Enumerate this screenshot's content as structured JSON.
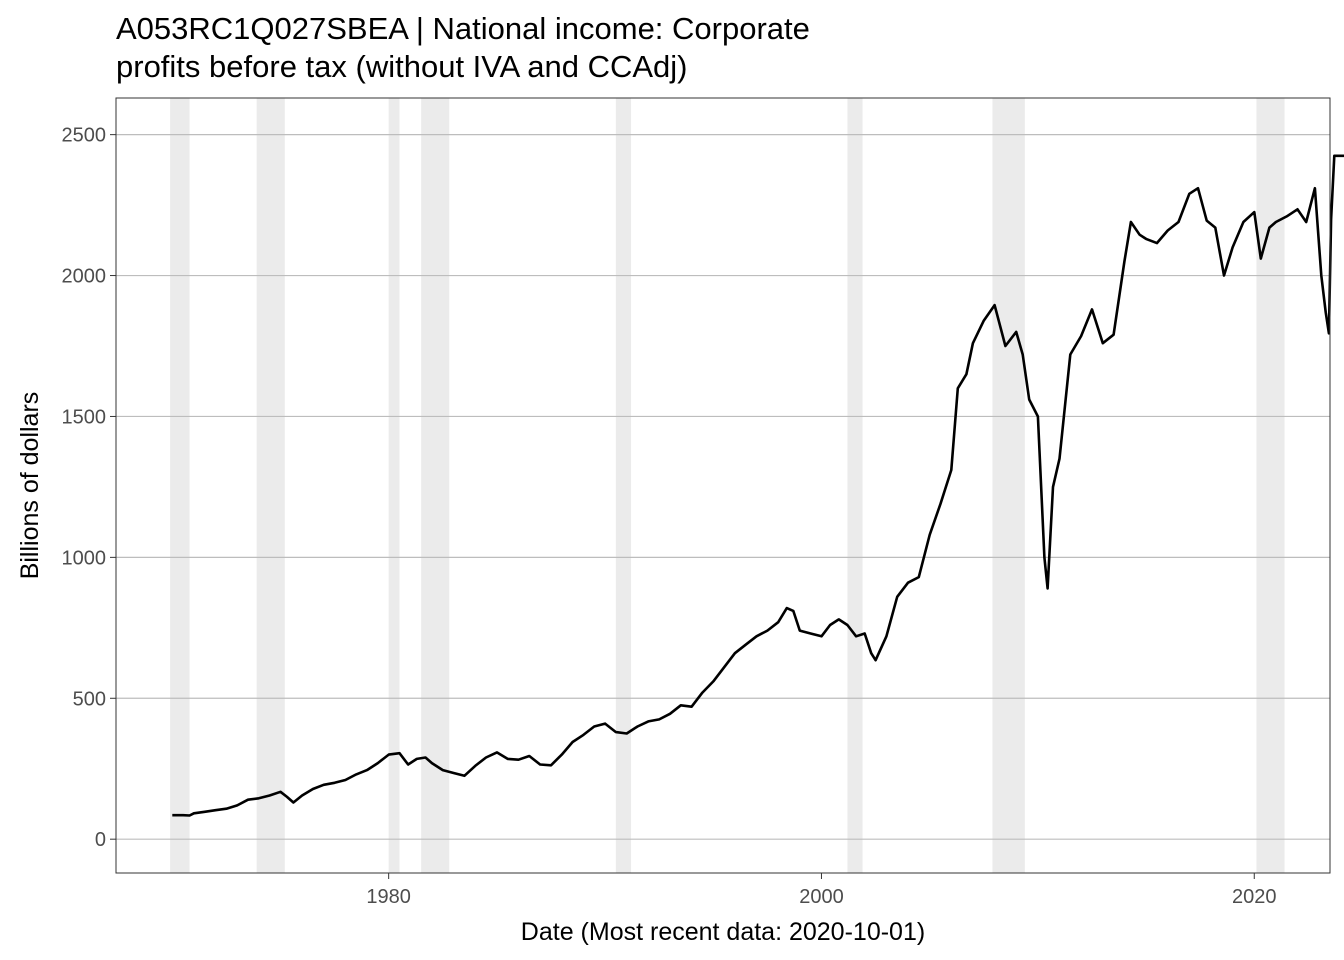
{
  "chart_data": {
    "type": "line",
    "title_line1": "A053RC1Q027SBEA | National income: Corporate",
    "title_line2": "profits before tax (without IVA and CCAdj)",
    "xlabel": "Date (Most recent data: 2020-10-01)",
    "ylabel": "Billions of dollars",
    "xlim": [
      1967.4,
      2023.5
    ],
    "ylim": [
      -120,
      2630
    ],
    "x_ticks": [
      {
        "value": 1980,
        "label": "1980"
      },
      {
        "value": 2000,
        "label": "2000"
      },
      {
        "value": 2020,
        "label": "2020"
      }
    ],
    "y_ticks": [
      {
        "value": 0,
        "label": "0"
      },
      {
        "value": 500,
        "label": "500"
      },
      {
        "value": 1000,
        "label": "1000"
      },
      {
        "value": 1500,
        "label": "1500"
      },
      {
        "value": 2000,
        "label": "2000"
      },
      {
        "value": 2500,
        "label": "2500"
      }
    ],
    "grid": true,
    "recessions": [
      [
        1969.9,
        1970.8
      ],
      [
        1973.9,
        1975.2
      ],
      [
        1980.0,
        1980.5
      ],
      [
        1981.5,
        1982.8
      ],
      [
        1990.5,
        1991.2
      ],
      [
        2001.2,
        2001.9
      ],
      [
        2007.9,
        2009.4
      ],
      [
        2020.1,
        2021.4
      ]
    ],
    "series": [
      {
        "color": "#000000",
        "points": [
          [
            1970.0,
            85
          ],
          [
            1970.5,
            85
          ],
          [
            1970.8,
            84
          ],
          [
            1971.0,
            92
          ],
          [
            1971.5,
            97
          ],
          [
            1972.0,
            103
          ],
          [
            1972.5,
            108
          ],
          [
            1973.0,
            120
          ],
          [
            1973.5,
            140
          ],
          [
            1974.0,
            145
          ],
          [
            1974.5,
            155
          ],
          [
            1975.0,
            168
          ],
          [
            1975.3,
            150
          ],
          [
            1975.6,
            130
          ],
          [
            1976.0,
            155
          ],
          [
            1976.5,
            178
          ],
          [
            1977.0,
            193
          ],
          [
            1977.5,
            200
          ],
          [
            1978.0,
            210
          ],
          [
            1978.5,
            230
          ],
          [
            1979.0,
            245
          ],
          [
            1979.5,
            270
          ],
          [
            1980.0,
            300
          ],
          [
            1980.5,
            305
          ],
          [
            1980.9,
            265
          ],
          [
            1981.3,
            285
          ],
          [
            1981.7,
            290
          ],
          [
            1982.0,
            270
          ],
          [
            1982.5,
            245
          ],
          [
            1983.0,
            235
          ],
          [
            1983.5,
            225
          ],
          [
            1984.0,
            260
          ],
          [
            1984.5,
            290
          ],
          [
            1985.0,
            308
          ],
          [
            1985.5,
            285
          ],
          [
            1986.0,
            282
          ],
          [
            1986.5,
            295
          ],
          [
            1987.0,
            265
          ],
          [
            1987.5,
            262
          ],
          [
            1988.0,
            300
          ],
          [
            1988.5,
            345
          ],
          [
            1989.0,
            370
          ],
          [
            1989.5,
            400
          ],
          [
            1990.0,
            410
          ],
          [
            1990.5,
            380
          ],
          [
            1991.0,
            375
          ],
          [
            1991.5,
            400
          ],
          [
            1992.0,
            418
          ],
          [
            1992.5,
            425
          ],
          [
            1993.0,
            445
          ],
          [
            1993.5,
            475
          ],
          [
            1994.0,
            470
          ],
          [
            1994.5,
            520
          ],
          [
            1995.0,
            560
          ],
          [
            1995.5,
            610
          ],
          [
            1996.0,
            660
          ],
          [
            1996.5,
            690
          ],
          [
            1997.0,
            720
          ],
          [
            1997.5,
            740
          ],
          [
            1998.0,
            770
          ],
          [
            1998.4,
            820
          ],
          [
            1998.7,
            810
          ],
          [
            1999.0,
            740
          ],
          [
            1999.5,
            730
          ],
          [
            2000.0,
            720
          ],
          [
            2000.4,
            760
          ],
          [
            2000.8,
            780
          ],
          [
            2001.2,
            760
          ],
          [
            2001.6,
            720
          ],
          [
            2002.0,
            730
          ],
          [
            2002.3,
            660
          ],
          [
            2002.5,
            635
          ],
          [
            2003.0,
            720
          ],
          [
            2003.5,
            860
          ],
          [
            2004.0,
            910
          ],
          [
            2004.5,
            930
          ],
          [
            2005.0,
            1080
          ],
          [
            2005.5,
            1190
          ],
          [
            2006.0,
            1310
          ],
          [
            2006.3,
            1600
          ],
          [
            2006.7,
            1650
          ],
          [
            2007.0,
            1760
          ],
          [
            2007.5,
            1840
          ],
          [
            2008.0,
            1895
          ],
          [
            2008.5,
            1750
          ],
          [
            2009.0,
            1800
          ],
          [
            2009.3,
            1720
          ],
          [
            2009.6,
            1560
          ],
          [
            2010.0,
            1500
          ],
          [
            2010.3,
            1000
          ],
          [
            2010.45,
            890
          ],
          [
            2010.7,
            1250
          ],
          [
            2011.0,
            1350
          ],
          [
            2011.5,
            1720
          ],
          [
            2012.0,
            1785
          ],
          [
            2012.5,
            1880
          ],
          [
            2013.0,
            1760
          ],
          [
            2013.5,
            1790
          ],
          [
            2014.0,
            2050
          ],
          [
            2014.3,
            2190
          ],
          [
            2014.7,
            2145
          ],
          [
            2015.0,
            2130
          ],
          [
            2015.5,
            2115
          ],
          [
            2016.0,
            2160
          ],
          [
            2016.5,
            2190
          ],
          [
            2017.0,
            2290
          ],
          [
            2017.4,
            2310
          ],
          [
            2017.8,
            2195
          ],
          [
            2018.2,
            2170
          ],
          [
            2018.6,
            2000
          ],
          [
            2019.0,
            2100
          ],
          [
            2019.5,
            2190
          ],
          [
            2020.0,
            2225
          ],
          [
            2020.3,
            2060
          ],
          [
            2020.7,
            2170
          ],
          [
            2021.0,
            2190
          ],
          [
            2021.5,
            2210
          ],
          [
            2022.0,
            2235
          ],
          [
            2022.4,
            2190
          ],
          [
            2022.8,
            2310
          ],
          [
            2023.1,
            2000
          ],
          [
            2023.3,
            1870
          ],
          [
            2023.45,
            1795
          ],
          [
            2023.55,
            2200
          ],
          [
            2023.7,
            2425
          ],
          [
            2024.2,
            2425
          ],
          [
            2025.0,
            2425
          ]
        ]
      }
    ]
  }
}
